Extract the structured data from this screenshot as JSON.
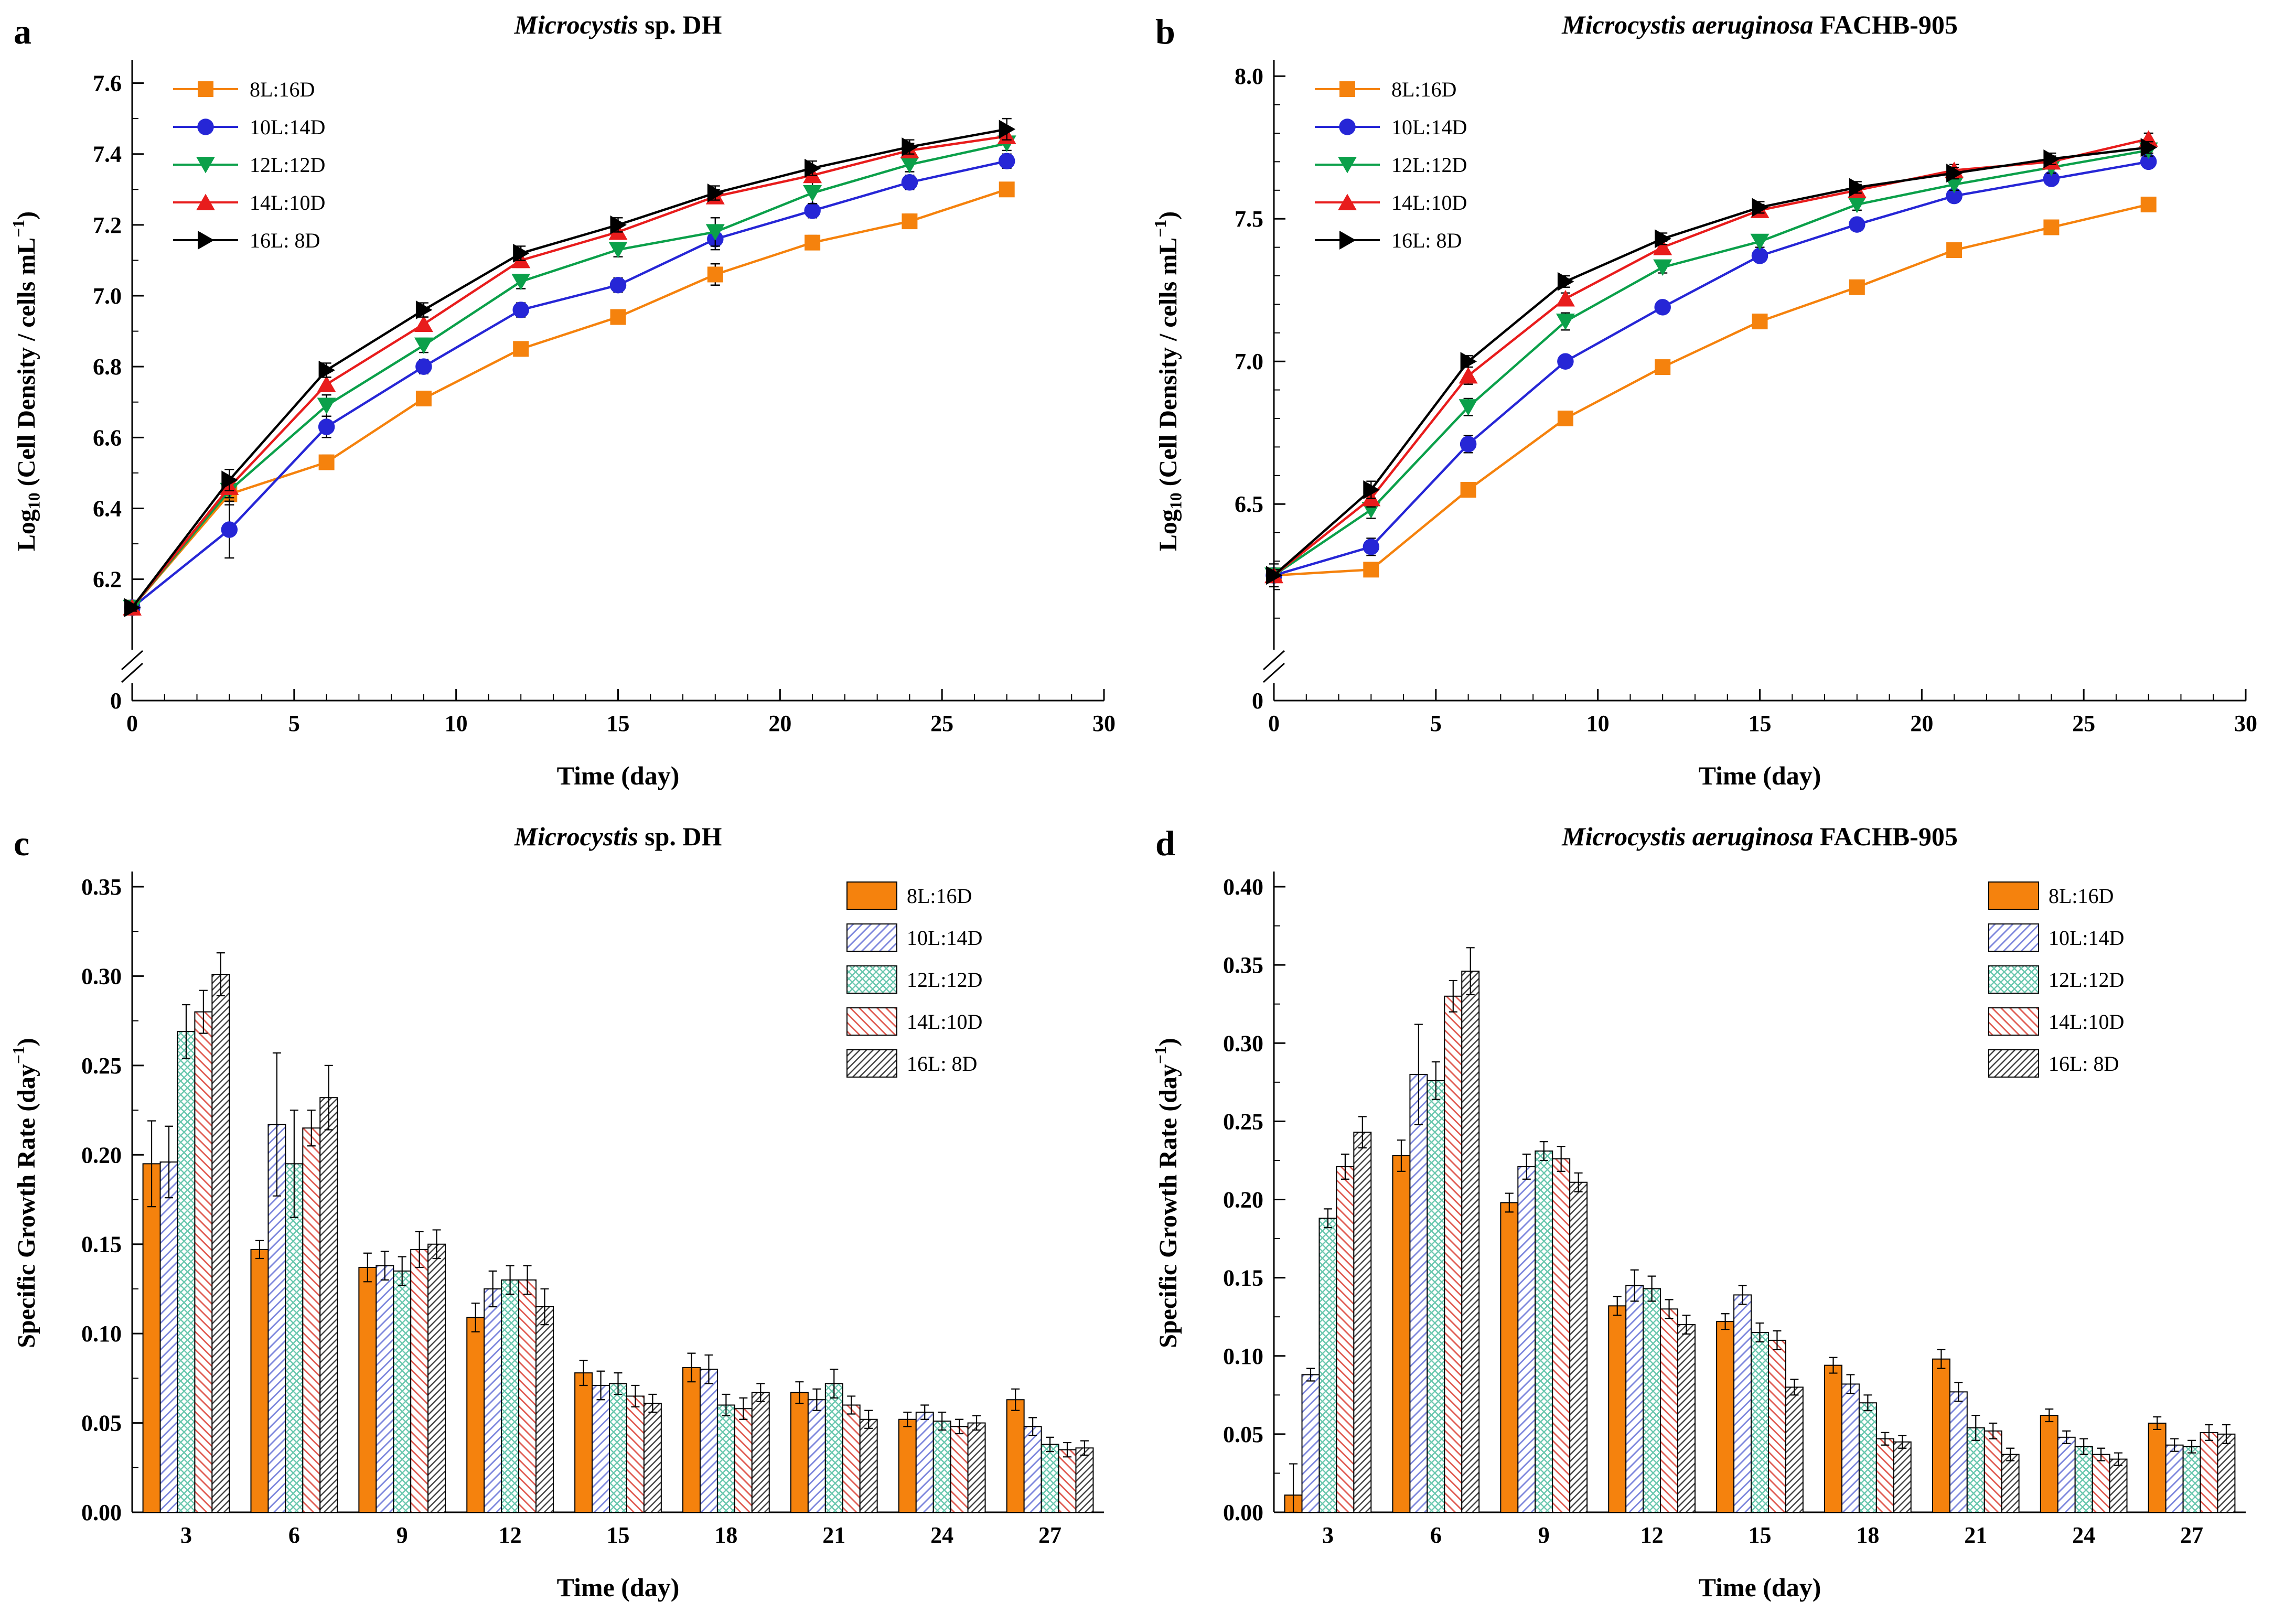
{
  "chart_data": [
    {
      "panel_label": "a",
      "type": "line",
      "title": "Microcystis sp. DH",
      "title_parts": [
        {
          "t": "Microcystis",
          "s": "i"
        },
        {
          "t": " sp. DH"
        }
      ],
      "xlabel": "Time (day)",
      "ylabel": "Log10 (Cell Density / cells mL-1)",
      "ylabel_parts": [
        {
          "t": "Log"
        },
        {
          "t": "10",
          "s": "sub"
        },
        {
          "t": " (Cell Density / cells mL",
          "s": "n"
        },
        {
          "t": "−1",
          "s": "sup"
        },
        {
          "t": ")",
          "s": "n"
        }
      ],
      "x": [
        0,
        3,
        6,
        9,
        12,
        15,
        18,
        21,
        24,
        27
      ],
      "xlim": [
        0,
        30
      ],
      "xticks": [
        0,
        5,
        10,
        15,
        20,
        25,
        30
      ],
      "x_minor_step": 1,
      "ylim": [
        6.05,
        7.66
      ],
      "yticks": [
        6.2,
        6.4,
        6.6,
        6.8,
        7.0,
        7.2,
        7.4,
        7.6
      ],
      "y_minor_step": 0.1,
      "ytick_decimals": 1,
      "broken_axis_zero_label": "0",
      "series": [
        {
          "name": "8L:16D",
          "color": "#F5820D",
          "marker": "square",
          "values": [
            6.12,
            6.44,
            6.53,
            6.71,
            6.85,
            6.94,
            7.06,
            7.15,
            7.21,
            7.3
          ],
          "errors": [
            0.01,
            0.03,
            0.02,
            0.02,
            0.02,
            0.02,
            0.03,
            0.02,
            0.02,
            0.02
          ]
        },
        {
          "name": "10L:14D",
          "color": "#2626D6",
          "marker": "circle",
          "values": [
            6.12,
            6.34,
            6.63,
            6.8,
            6.96,
            7.03,
            7.16,
            7.24,
            7.32,
            7.38
          ],
          "errors": [
            0.01,
            0.08,
            0.03,
            0.02,
            0.02,
            0.02,
            0.03,
            0.02,
            0.02,
            0.02
          ]
        },
        {
          "name": "12L:12D",
          "color": "#0BA04A",
          "marker": "triangle-down",
          "values": [
            6.12,
            6.45,
            6.69,
            6.86,
            7.04,
            7.13,
            7.18,
            7.29,
            7.37,
            7.43
          ],
          "errors": [
            0.01,
            0.03,
            0.03,
            0.02,
            0.02,
            0.02,
            0.04,
            0.03,
            0.02,
            0.02
          ]
        },
        {
          "name": "14L:10D",
          "color": "#E81C1C",
          "marker": "triangle-up",
          "values": [
            6.12,
            6.46,
            6.75,
            6.92,
            7.1,
            7.18,
            7.28,
            7.34,
            7.41,
            7.45
          ],
          "errors": [
            0.01,
            0.03,
            0.02,
            0.02,
            0.02,
            0.02,
            0.02,
            0.02,
            0.02,
            0.02
          ]
        },
        {
          "name": "16L:  8D",
          "color": "#000000",
          "marker": "triangle-right",
          "values": [
            6.12,
            6.48,
            6.79,
            6.96,
            7.12,
            7.2,
            7.29,
            7.36,
            7.42,
            7.47
          ],
          "errors": [
            0.01,
            0.03,
            0.02,
            0.02,
            0.02,
            0.02,
            0.02,
            0.02,
            0.02,
            0.03
          ]
        }
      ]
    },
    {
      "panel_label": "b",
      "type": "line",
      "title": "Microcystis aeruginosa FACHB-905",
      "title_parts": [
        {
          "t": "Microcystis aeruginosa",
          "s": "i"
        },
        {
          "t": " FACHB-905"
        }
      ],
      "xlabel": "Time (day)",
      "ylabel": "Log10 (Cell Density / cells mL-1)",
      "ylabel_parts": [
        {
          "t": "Log"
        },
        {
          "t": "10",
          "s": "sub"
        },
        {
          "t": " (Cell Density / cells mL",
          "s": "n"
        },
        {
          "t": "−1",
          "s": "sup"
        },
        {
          "t": ")",
          "s": "n"
        }
      ],
      "x": [
        0,
        3,
        6,
        9,
        12,
        15,
        18,
        21,
        24,
        27
      ],
      "xlim": [
        0,
        30
      ],
      "xticks": [
        0,
        5,
        10,
        15,
        20,
        25,
        30
      ],
      "x_minor_step": 1,
      "ylim": [
        6.05,
        8.05
      ],
      "yticks": [
        6.5,
        7.0,
        7.5,
        8.0
      ],
      "y_minor_step": 0.1,
      "ytick_decimals": 1,
      "broken_axis_zero_label": "0",
      "series": [
        {
          "name": "8L:16D",
          "color": "#F5820D",
          "marker": "square",
          "values": [
            6.25,
            6.27,
            6.55,
            6.8,
            6.98,
            7.14,
            7.26,
            7.39,
            7.47,
            7.55
          ],
          "errors": [
            0.02,
            0.02,
            0.02,
            0.02,
            0.02,
            0.02,
            0.02,
            0.02,
            0.02,
            0.02
          ]
        },
        {
          "name": "10L:14D",
          "color": "#2626D6",
          "marker": "circle",
          "values": [
            6.25,
            6.35,
            6.71,
            7.0,
            7.19,
            7.37,
            7.48,
            7.58,
            7.64,
            7.7
          ],
          "errors": [
            0.02,
            0.03,
            0.03,
            0.02,
            0.02,
            0.02,
            0.02,
            0.02,
            0.02,
            0.02
          ]
        },
        {
          "name": "12L:12D",
          "color": "#0BA04A",
          "marker": "triangle-down",
          "values": [
            6.25,
            6.48,
            6.84,
            7.14,
            7.33,
            7.42,
            7.55,
            7.62,
            7.68,
            7.74
          ],
          "errors": [
            0.02,
            0.03,
            0.03,
            0.03,
            0.02,
            0.02,
            0.02,
            0.02,
            0.02,
            0.02
          ]
        },
        {
          "name": "14L:10D",
          "color": "#E81C1C",
          "marker": "triangle-up",
          "values": [
            6.25,
            6.52,
            6.95,
            7.22,
            7.4,
            7.53,
            7.6,
            7.67,
            7.7,
            7.78
          ],
          "errors": [
            0.02,
            0.03,
            0.03,
            0.02,
            0.02,
            0.02,
            0.02,
            0.02,
            0.02,
            0.02
          ]
        },
        {
          "name": "16L:  8D",
          "color": "#000000",
          "marker": "triangle-right",
          "values": [
            6.25,
            6.55,
            7.0,
            7.28,
            7.43,
            7.54,
            7.61,
            7.66,
            7.71,
            7.75
          ],
          "errors": [
            0.04,
            0.03,
            0.02,
            0.02,
            0.02,
            0.02,
            0.02,
            0.02,
            0.02,
            0.02
          ]
        }
      ]
    },
    {
      "panel_label": "c",
      "type": "bar",
      "title": "Microcystis sp. DH",
      "title_parts": [
        {
          "t": "Microcystis",
          "s": "i"
        },
        {
          "t": " sp. DH"
        }
      ],
      "xlabel": "Time (day)",
      "ylabel": "Specific Growth Rate (day-1)",
      "ylabel_parts": [
        {
          "t": "Specific Growth Rate (day"
        },
        {
          "t": "−1",
          "s": "sup"
        },
        {
          "t": ")",
          "s": "n"
        }
      ],
      "categories": [
        3,
        6,
        9,
        12,
        15,
        18,
        21,
        24,
        27
      ],
      "ylim": [
        0,
        0.35
      ],
      "yticks": [
        0,
        0.05,
        0.1,
        0.15,
        0.2,
        0.25,
        0.3,
        0.35
      ],
      "y_minor_step": 0.025,
      "ytick_decimals": 2,
      "series": [
        {
          "name": "8L:16D",
          "fill": "solid",
          "color": "#F5820D",
          "values": [
            0.195,
            0.147,
            0.137,
            0.109,
            0.078,
            0.081,
            0.067,
            0.052,
            0.063
          ],
          "errors": [
            0.024,
            0.005,
            0.008,
            0.008,
            0.007,
            0.008,
            0.006,
            0.004,
            0.006
          ]
        },
        {
          "name": "10L:14D",
          "fill": "hatch-forward",
          "color": "#7B85DC",
          "values": [
            0.196,
            0.217,
            0.138,
            0.125,
            0.071,
            0.08,
            0.063,
            0.056,
            0.048
          ],
          "errors": [
            0.02,
            0.04,
            0.008,
            0.01,
            0.008,
            0.008,
            0.006,
            0.004,
            0.005
          ]
        },
        {
          "name": "12L:12D",
          "fill": "crosshatch",
          "color": "#69C7AE",
          "values": [
            0.269,
            0.195,
            0.135,
            0.13,
            0.072,
            0.06,
            0.072,
            0.051,
            0.038
          ],
          "errors": [
            0.015,
            0.03,
            0.008,
            0.008,
            0.006,
            0.006,
            0.008,
            0.005,
            0.004
          ]
        },
        {
          "name": "14L:10D",
          "fill": "hatch-back",
          "color": "#E05A50",
          "values": [
            0.28,
            0.215,
            0.147,
            0.13,
            0.065,
            0.058,
            0.06,
            0.048,
            0.035
          ],
          "errors": [
            0.012,
            0.01,
            0.01,
            0.008,
            0.006,
            0.006,
            0.005,
            0.004,
            0.004
          ]
        },
        {
          "name": "16L:  8D",
          "fill": "hatch-dense",
          "color": "#3A3A3A",
          "values": [
            0.301,
            0.232,
            0.15,
            0.115,
            0.061,
            0.067,
            0.052,
            0.05,
            0.036
          ],
          "errors": [
            0.012,
            0.018,
            0.008,
            0.01,
            0.005,
            0.005,
            0.005,
            0.004,
            0.004
          ]
        }
      ]
    },
    {
      "panel_label": "d",
      "type": "bar",
      "title": "Microcystis aeruginosa FACHB-905",
      "title_parts": [
        {
          "t": "Microcystis aeruginosa",
          "s": "i"
        },
        {
          "t": " FACHB-905"
        }
      ],
      "xlabel": "Time (day)",
      "ylabel": "Specific Growth Rate (day-1)",
      "ylabel_parts": [
        {
          "t": "Specific Growth Rate (day"
        },
        {
          "t": "−1",
          "s": "sup"
        },
        {
          "t": ")",
          "s": "n"
        }
      ],
      "categories": [
        3,
        6,
        9,
        12,
        15,
        18,
        21,
        24,
        27
      ],
      "ylim": [
        0,
        0.4
      ],
      "yticks": [
        0,
        0.05,
        0.1,
        0.15,
        0.2,
        0.25,
        0.3,
        0.35,
        0.4
      ],
      "y_minor_step": 0.025,
      "ytick_decimals": 2,
      "series": [
        {
          "name": "8L:16D",
          "fill": "solid",
          "color": "#F5820D",
          "values": [
            0.011,
            0.228,
            0.198,
            0.132,
            0.122,
            0.094,
            0.098,
            0.062,
            0.057
          ],
          "errors": [
            0.02,
            0.01,
            0.006,
            0.006,
            0.005,
            0.005,
            0.006,
            0.004,
            0.004
          ]
        },
        {
          "name": "10L:14D",
          "fill": "hatch-forward",
          "color": "#7B85DC",
          "values": [
            0.088,
            0.28,
            0.221,
            0.145,
            0.139,
            0.082,
            0.077,
            0.048,
            0.043
          ],
          "errors": [
            0.004,
            0.032,
            0.008,
            0.01,
            0.006,
            0.006,
            0.006,
            0.004,
            0.004
          ]
        },
        {
          "name": "12L:12D",
          "fill": "crosshatch",
          "color": "#69C7AE",
          "values": [
            0.188,
            0.276,
            0.231,
            0.143,
            0.115,
            0.07,
            0.054,
            0.042,
            0.042
          ],
          "errors": [
            0.006,
            0.012,
            0.006,
            0.008,
            0.006,
            0.005,
            0.008,
            0.005,
            0.004
          ]
        },
        {
          "name": "14L:10D",
          "fill": "hatch-back",
          "color": "#E05A50",
          "values": [
            0.221,
            0.33,
            0.226,
            0.13,
            0.11,
            0.047,
            0.052,
            0.037,
            0.051
          ],
          "errors": [
            0.008,
            0.01,
            0.008,
            0.006,
            0.006,
            0.004,
            0.005,
            0.004,
            0.005
          ]
        },
        {
          "name": "16L:  8D",
          "fill": "hatch-dense",
          "color": "#3A3A3A",
          "values": [
            0.243,
            0.346,
            0.211,
            0.12,
            0.08,
            0.045,
            0.037,
            0.034,
            0.05
          ],
          "errors": [
            0.01,
            0.015,
            0.006,
            0.006,
            0.005,
            0.004,
            0.004,
            0.004,
            0.006
          ]
        }
      ]
    }
  ]
}
